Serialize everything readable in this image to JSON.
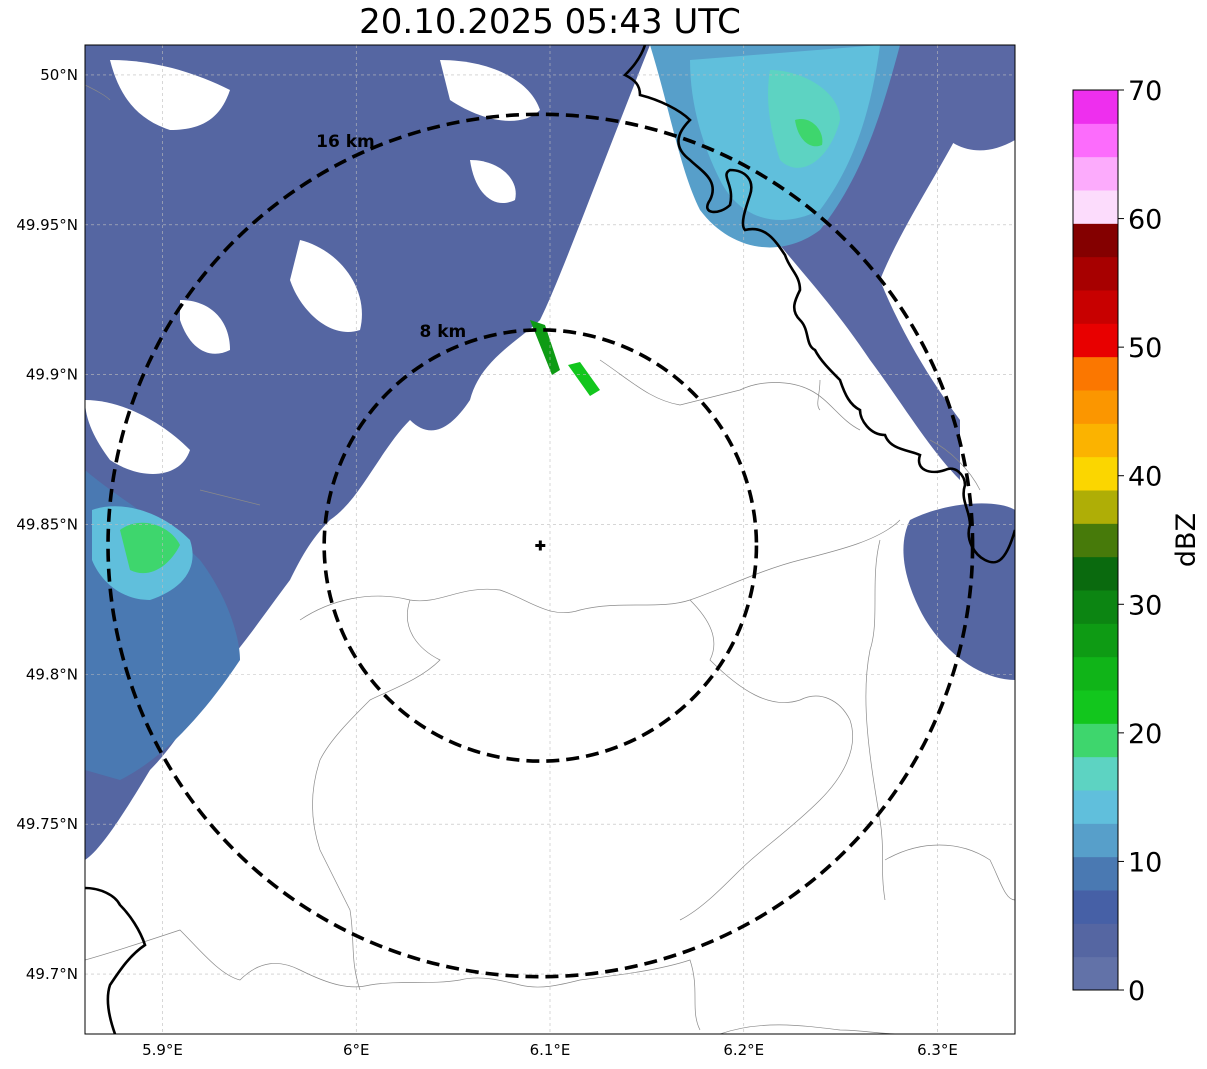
{
  "title": "20.10.2025 05:43 UTC",
  "map": {
    "lon_ticks": [
      {
        "value": 5.9,
        "label": "5.9°E"
      },
      {
        "value": 6.0,
        "label": "6°E"
      },
      {
        "value": 6.1,
        "label": "6.1°E"
      },
      {
        "value": 6.2,
        "label": "6.2°E"
      },
      {
        "value": 6.3,
        "label": "6.3°E"
      }
    ],
    "lat_ticks": [
      {
        "value": 50.0,
        "label": "50°N"
      },
      {
        "value": 49.95,
        "label": "49.95°N"
      },
      {
        "value": 49.9,
        "label": "49.9°N"
      },
      {
        "value": 49.85,
        "label": "49.85°N"
      },
      {
        "value": 49.8,
        "label": "49.8°N"
      },
      {
        "value": 49.75,
        "label": "49.75°N"
      },
      {
        "value": 49.7,
        "label": "49.7°N"
      }
    ],
    "lon_range": [
      5.86,
      6.34
    ],
    "lat_range": [
      49.68,
      50.01
    ],
    "radar_site": {
      "lon": 6.095,
      "lat": 49.843
    },
    "range_rings": [
      {
        "label": "8 km",
        "radius_km": 8
      },
      {
        "label": "16 km",
        "radius_km": 16
      }
    ]
  },
  "colorbar": {
    "unit": "dBZ",
    "range": [
      0,
      70
    ],
    "tick_values": [
      0,
      10,
      20,
      30,
      40,
      50,
      60,
      70
    ],
    "tick_labels": [
      "0",
      "10",
      "20",
      "30",
      "40",
      "50",
      "60",
      "70"
    ],
    "colors": [
      "#6272a8",
      "#5566a2",
      "#4660a6",
      "#4a79b2",
      "#579fca",
      "#60bfdc",
      "#5dd3c2",
      "#3ed66d",
      "#12c61d",
      "#10b418",
      "#0e9b14",
      "#0c8512",
      "#0a6a0e",
      "#477a0a",
      "#afae06",
      "#fbd600",
      "#fbb300",
      "#fb9600",
      "#fb7700",
      "#e80000",
      "#c80000",
      "#a70000",
      "#840000",
      "#fcdcfc",
      "#fcabfc",
      "#fc6cfc",
      "#ee2fee"
    ]
  },
  "colors": {
    "border": "#000000",
    "region_line": "#8a8a8a",
    "grid": "#bdbdbd"
  }
}
